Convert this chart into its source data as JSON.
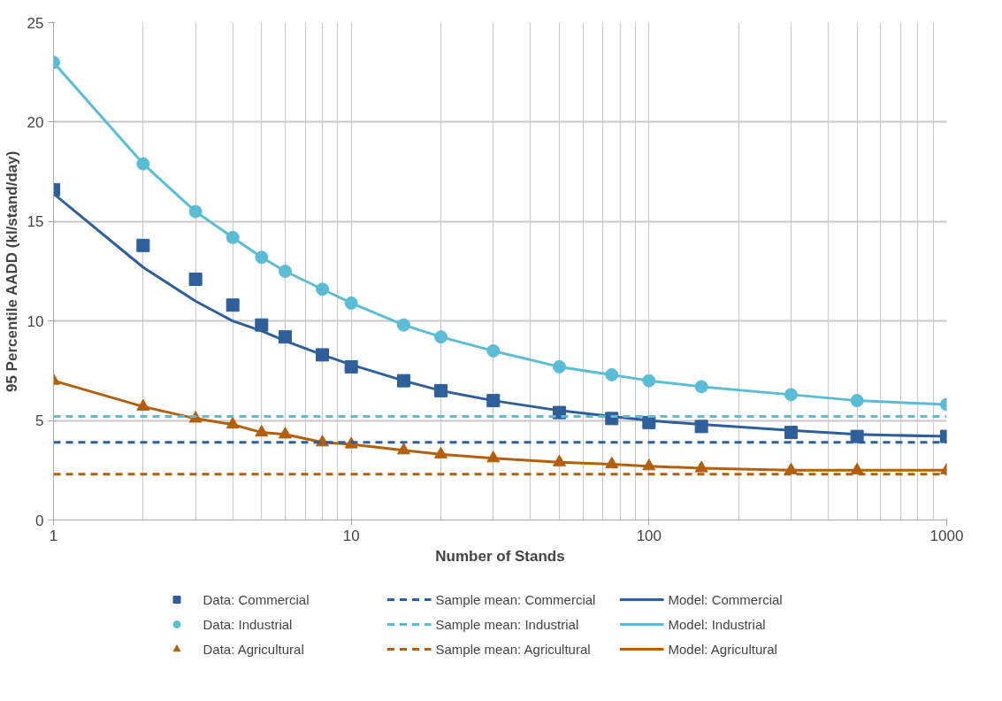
{
  "chart_data": {
    "type": "line",
    "xlabel": "Number of Stands",
    "ylabel": "95 Percentile AADD (kl/stand/day)",
    "x": [
      1,
      2,
      3,
      4,
      5,
      6,
      8,
      10,
      15,
      20,
      30,
      50,
      75,
      100,
      150,
      300,
      500,
      1000
    ],
    "series": [
      {
        "name": "Data: Commercial",
        "type": "scatter",
        "marker": "square",
        "color": "#2e5f9a",
        "values": [
          16.6,
          13.8,
          12.1,
          10.8,
          9.8,
          9.2,
          8.3,
          7.7,
          7.0,
          6.5,
          6.0,
          5.4,
          5.1,
          4.9,
          4.7,
          4.4,
          4.2,
          4.2
        ]
      },
      {
        "name": "Data: Industrial",
        "type": "scatter",
        "marker": "circle",
        "color": "#5bbcd6",
        "values": [
          23.0,
          17.9,
          15.5,
          14.2,
          13.2,
          12.5,
          11.6,
          10.9,
          9.8,
          9.2,
          8.5,
          7.7,
          7.3,
          7.0,
          6.7,
          6.3,
          6.0,
          5.8
        ]
      },
      {
        "name": "Data: Agricultural",
        "type": "scatter",
        "marker": "triangle",
        "color": "#b35f0e",
        "values": [
          7.0,
          5.7,
          5.1,
          4.8,
          4.4,
          4.3,
          3.9,
          3.8,
          3.5,
          3.3,
          3.1,
          2.9,
          2.8,
          2.7,
          2.6,
          2.5,
          2.5,
          2.5
        ]
      },
      {
        "name": "Model: Commercial",
        "color": "#2e5f9a",
        "values": [
          16.4,
          12.7,
          11.0,
          10.0,
          9.5,
          9.0,
          8.3,
          7.8,
          7.0,
          6.5,
          6.0,
          5.5,
          5.2,
          5.0,
          4.8,
          4.5,
          4.3,
          4.2
        ]
      },
      {
        "name": "Model: Industrial",
        "color": "#5bbcd6",
        "values": [
          23.0,
          17.9,
          15.5,
          14.2,
          13.2,
          12.5,
          11.6,
          10.9,
          9.8,
          9.2,
          8.5,
          7.7,
          7.3,
          7.0,
          6.7,
          6.3,
          6.0,
          5.8
        ]
      },
      {
        "name": "Model: Agricultural",
        "color": "#b35f0e",
        "values": [
          7.0,
          5.7,
          5.1,
          4.8,
          4.4,
          4.3,
          3.9,
          3.8,
          3.5,
          3.3,
          3.1,
          2.9,
          2.8,
          2.7,
          2.6,
          2.5,
          2.5,
          2.5
        ]
      }
    ],
    "ref_lines": [
      {
        "axis": "y",
        "value": 3.9,
        "label": "Sample mean: Commercial",
        "color": "#2e5f9a",
        "line_style": "dashed"
      },
      {
        "axis": "y",
        "value": 5.2,
        "label": "Sample mean: Industrial",
        "color": "#5bbcd6",
        "line_style": "dashed"
      },
      {
        "axis": "y",
        "value": 2.3,
        "label": "Sample mean: Agricultural",
        "color": "#b35f0e",
        "line_style": "dashed"
      }
    ],
    "log": "x",
    "xlim": [
      1,
      1000
    ],
    "xticks": [
      1,
      10,
      100,
      1000
    ],
    "ylim": [
      0,
      25
    ],
    "yticks": [
      0,
      5,
      10,
      15,
      20,
      25
    ],
    "grid": true,
    "legend": "bottom"
  }
}
